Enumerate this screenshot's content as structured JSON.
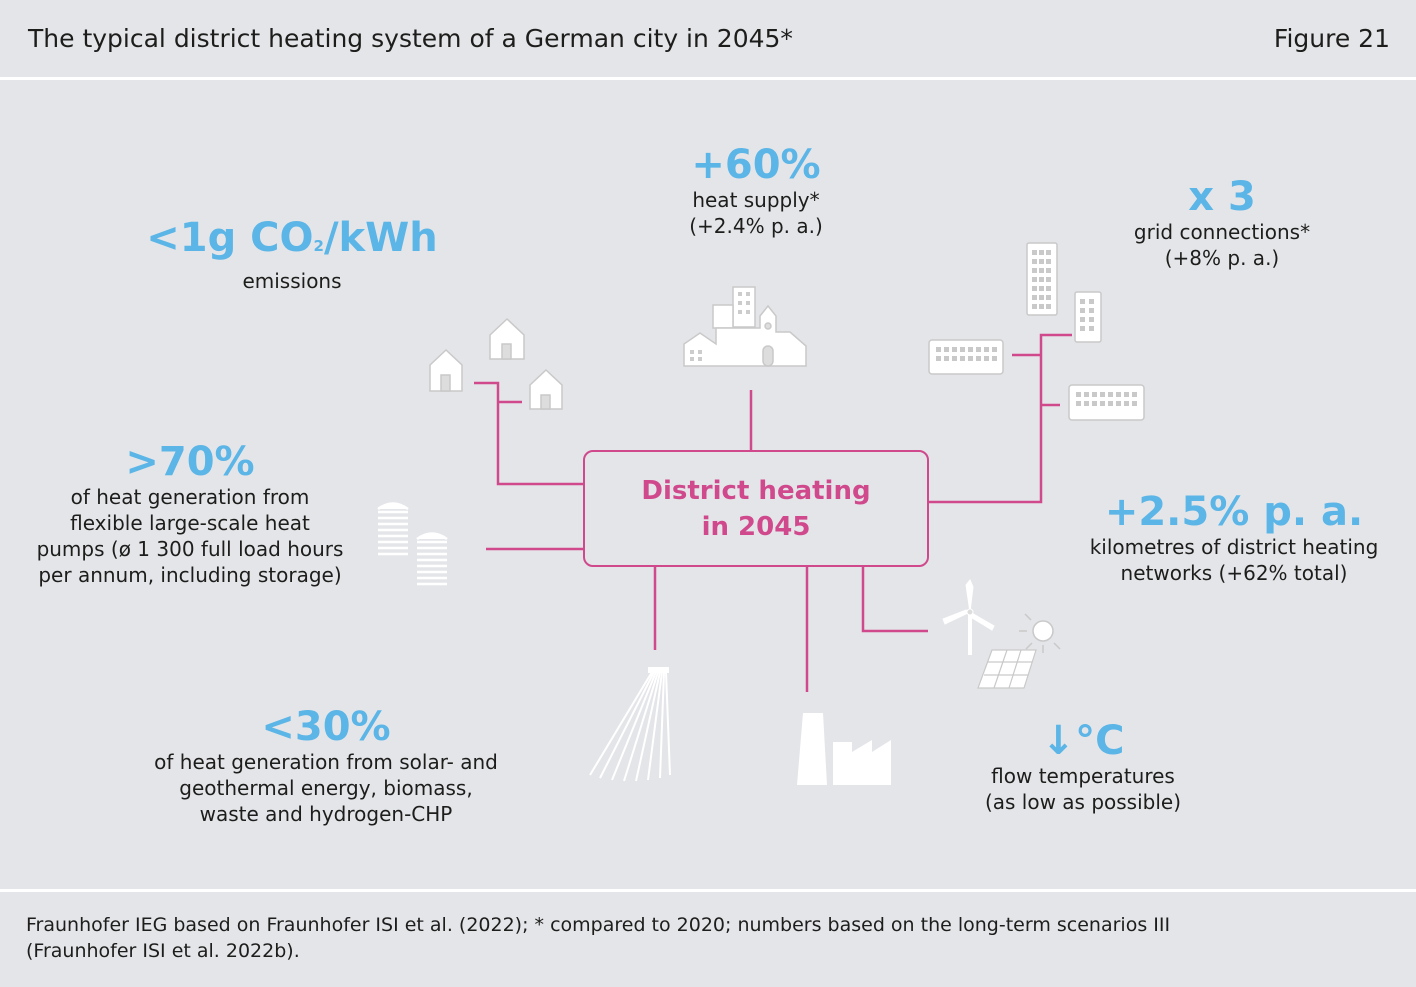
{
  "header": {
    "title": "The typical district heating system of a German city in 2045*",
    "figure_label": "Figure 21"
  },
  "center": {
    "label": "District heating\nin 2045"
  },
  "stats": {
    "emissions": {
      "value_main": "<1g CO",
      "value_sub": "2",
      "value_end": "/kWh",
      "desc": "emissions"
    },
    "heat_supply": {
      "value": "+60%",
      "desc1": "heat supply*",
      "desc2": "(+2.4% p. a.)"
    },
    "grid": {
      "value": "x 3",
      "desc1": "grid connections*",
      "desc2": "(+8% p. a.)"
    },
    "heat_pumps": {
      "value": ">70%",
      "desc1": "of heat generation from",
      "desc2": "flexible large-scale heat",
      "desc3": "pumps (ø 1 300 full load hours",
      "desc4": "per annum, including storage)"
    },
    "network": {
      "value": "+2.5% p. a.",
      "desc1": "kilometres of district heating",
      "desc2": "networks (+62% total)"
    },
    "renewables": {
      "value": "<30%",
      "desc1": "of heat generation from solar- and",
      "desc2": "geothermal energy, biomass,",
      "desc3": "waste and hydrogen-CHP"
    },
    "temperature": {
      "value": "↓°C",
      "desc1": "flow temperatures",
      "desc2": "(as low as possible)"
    }
  },
  "footer": {
    "source1": "Fraunhofer IEG based on Fraunhofer ISI et al. (2022); * compared to 2020; numbers based on the long-term scenarios III",
    "source2": "(Fraunhofer ISI et al. 2022b)."
  },
  "colors": {
    "accent_blue": "#5bb5e6",
    "accent_magenta": "#d0498d",
    "background": "#e4e5e9"
  }
}
